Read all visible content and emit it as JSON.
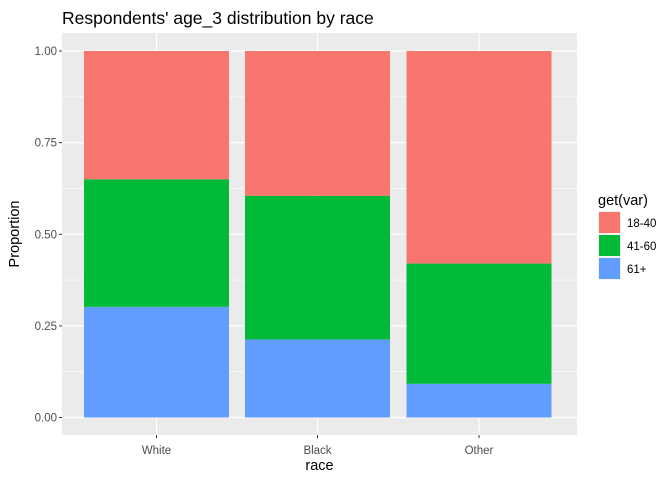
{
  "chart_data": {
    "type": "bar",
    "stacked": true,
    "title": "Respondents' age_3 distribution by race",
    "xlabel": "race",
    "ylabel": "Proportion",
    "categories": [
      "White",
      "Black",
      "Other"
    ],
    "ylim": [
      0,
      1
    ],
    "yticks": [
      0,
      0.25,
      0.5,
      0.75,
      1
    ],
    "ytick_labels": [
      "0.00",
      "0.25",
      "0.50",
      "0.75",
      "1.00"
    ],
    "grid": true,
    "legend": {
      "title": "get(var)",
      "position": "right"
    },
    "series": [
      {
        "name": "18-40",
        "color": "#F8766D",
        "values": [
          0.35,
          0.395,
          0.58
        ]
      },
      {
        "name": "41-60",
        "color": "#00BA38",
        "values": [
          0.348,
          0.392,
          0.328
        ]
      },
      {
        "name": "61+",
        "color": "#619CFF",
        "values": [
          0.302,
          0.213,
          0.092
        ]
      }
    ]
  }
}
